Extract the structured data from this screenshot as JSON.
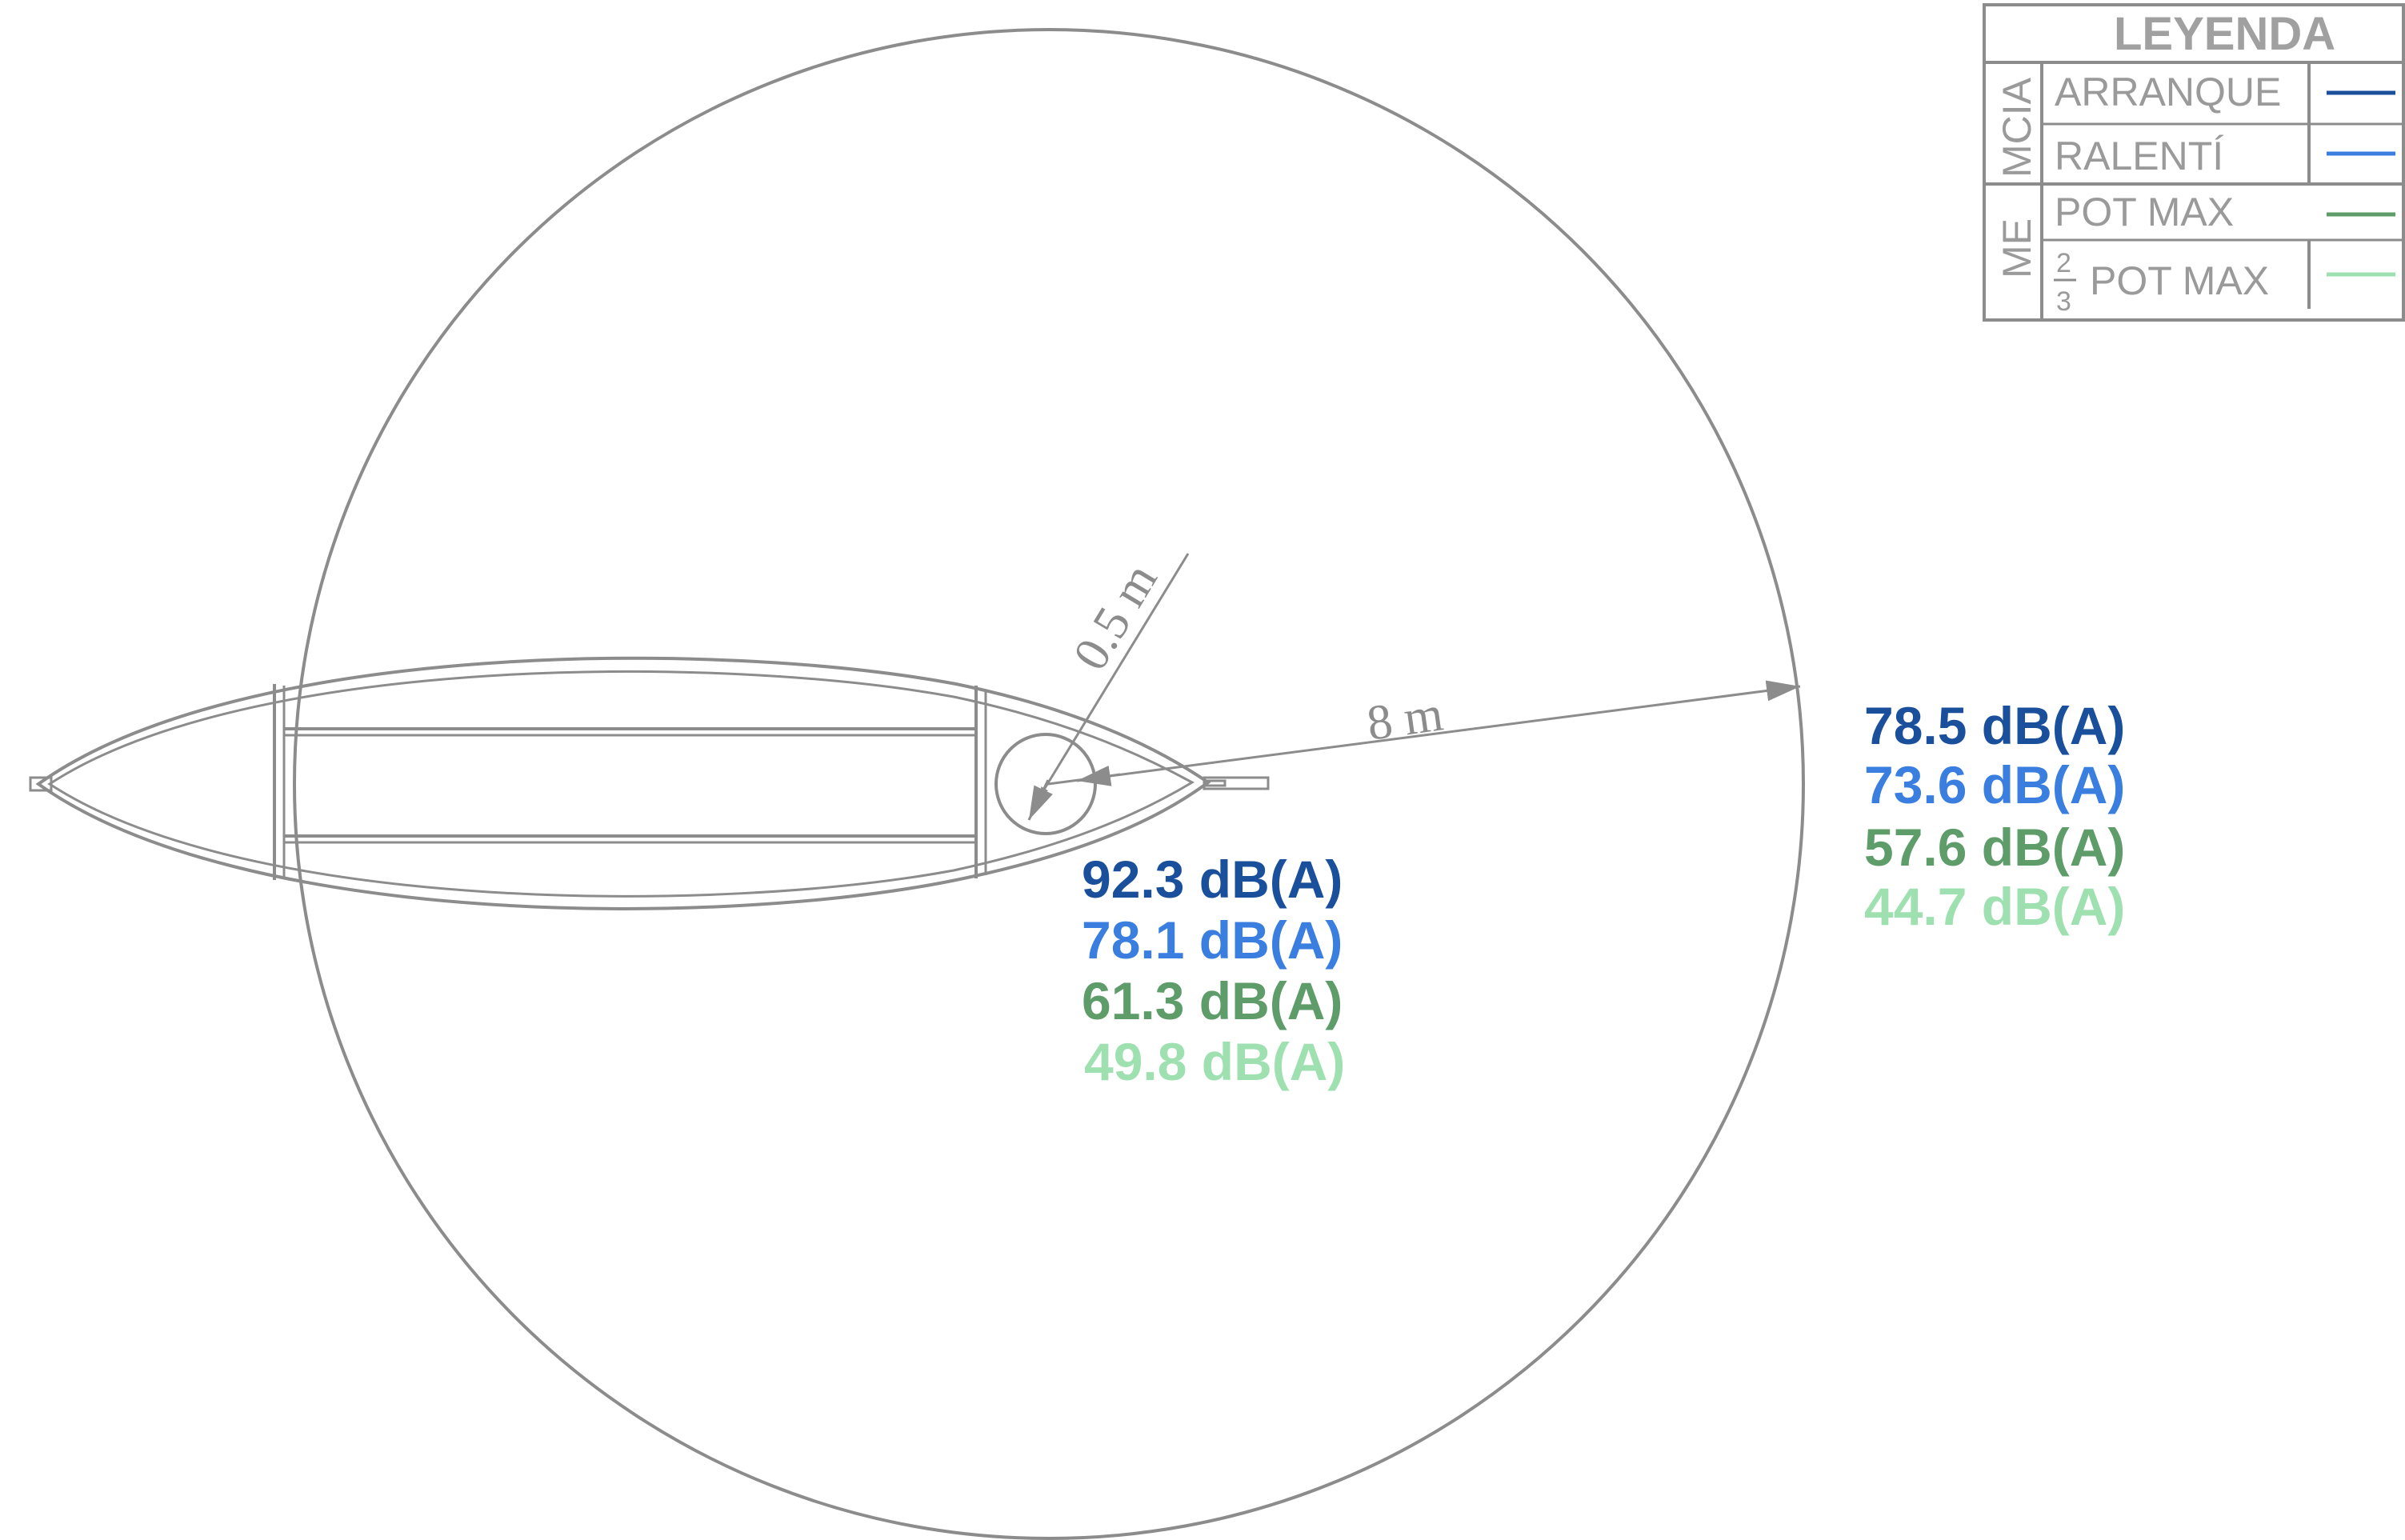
{
  "colors": {
    "line": "#8c8c8c",
    "arranque": "#1a4f9c",
    "ralenti": "#3a7ee0",
    "pot_max": "#5e9c6a",
    "two_thirds_pot_max": "#9fe0b0"
  },
  "dimensions": {
    "near_radius": "0.5 m",
    "far_radius": "8 m"
  },
  "levels_near": {
    "arranque": "92.3 dB(A)",
    "ralenti": "78.1 dB(A)",
    "pot_max": "61.3 dB(A)",
    "two_thirds_pot_max": "49.8 dB(A)"
  },
  "levels_far": {
    "arranque": "78.5 dB(A)",
    "ralenti": "73.6 dB(A)",
    "pot_max": "57.6 dB(A)",
    "two_thirds_pot_max": "44.7 dB(A)"
  },
  "legend": {
    "title": "LEYENDA",
    "group_mcia": "MCIA",
    "group_me": "ME",
    "rows": [
      {
        "label": "ARRANQUE",
        "color_key": "arranque"
      },
      {
        "label": "RALENTÍ",
        "color_key": "ralenti"
      },
      {
        "label": "POT MAX",
        "color_key": "pot_max"
      },
      {
        "label": "POT MAX",
        "fraction_num": "2",
        "fraction_den": "3",
        "color_key": "two_thirds_pot_max"
      }
    ]
  }
}
